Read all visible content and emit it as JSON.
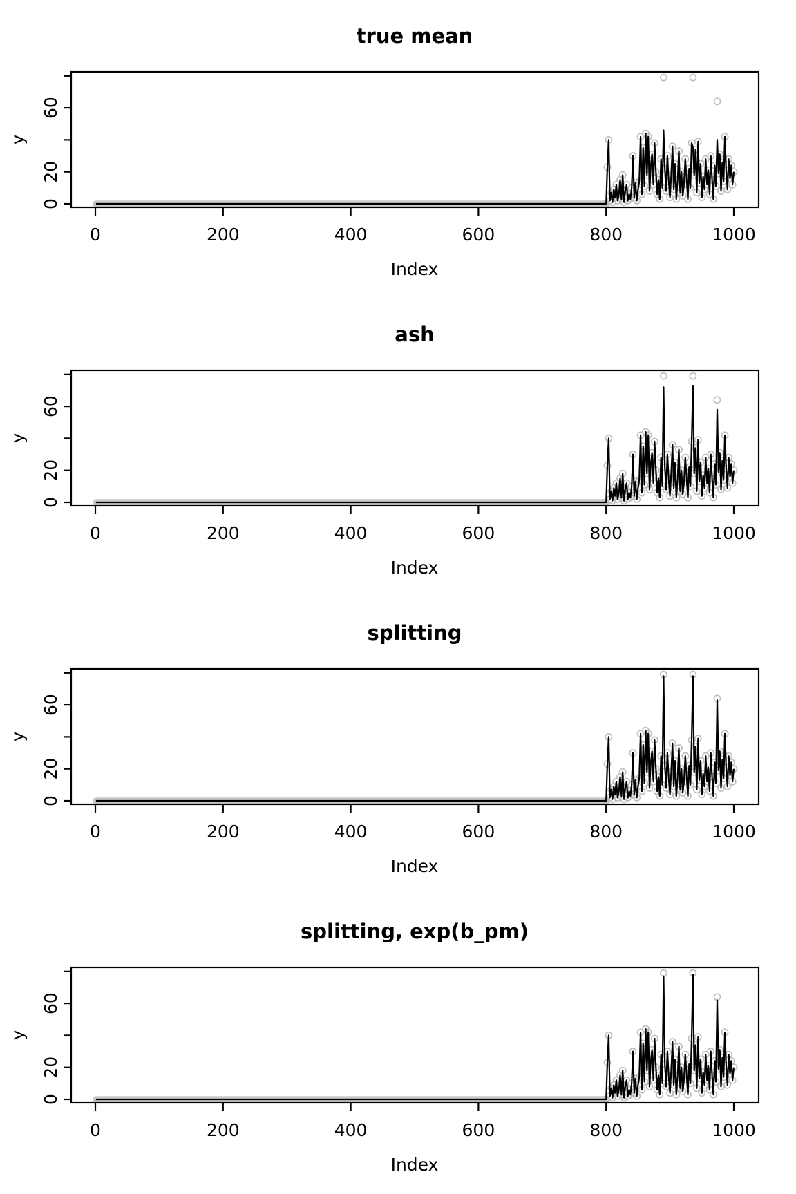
{
  "figure_title": "",
  "chart_data": {
    "type": "line",
    "xlabel": "Index",
    "ylabel": "y",
    "x_range": [
      0,
      1000
    ],
    "y_range": [
      0,
      80
    ],
    "grid": "off",
    "legend": "none",
    "x_ticks": [
      0,
      200,
      400,
      600,
      800,
      1000
    ],
    "y_ticks": [
      0,
      20,
      40,
      60,
      80
    ],
    "y_tick_labels": [
      "0",
      "20",
      "",
      "60",
      ""
    ],
    "panels": [
      {
        "title": "true mean",
        "series": "true_mean"
      },
      {
        "title": "ash",
        "series": "ash"
      },
      {
        "title": "splitting",
        "series": "splitting"
      },
      {
        "title": "splitting, exp(b_pm)",
        "series": "splitting_exp"
      }
    ],
    "flat": {
      "x_start": 1,
      "x_end": 800,
      "value": 0,
      "note": "observed y = 0 for indices 1-800 in all panels"
    },
    "x": [
      800,
      802,
      804,
      806,
      808,
      810,
      812,
      814,
      816,
      818,
      820,
      822,
      824,
      826,
      828,
      830,
      832,
      834,
      836,
      838,
      840,
      842,
      844,
      846,
      848,
      850,
      852,
      854,
      856,
      858,
      860,
      862,
      864,
      866,
      868,
      870,
      872,
      874,
      876,
      878,
      880,
      882,
      884,
      886,
      888,
      890,
      892,
      894,
      896,
      898,
      900,
      902,
      904,
      906,
      908,
      910,
      912,
      914,
      916,
      918,
      920,
      922,
      924,
      926,
      928,
      930,
      932,
      934,
      936,
      938,
      940,
      942,
      944,
      946,
      948,
      950,
      952,
      954,
      956,
      958,
      960,
      962,
      964,
      966,
      968,
      970,
      972,
      974,
      976,
      978,
      980,
      982,
      984,
      986,
      988,
      990,
      992,
      994,
      996,
      998,
      1000
    ],
    "observed": [
      0,
      23,
      40,
      2,
      7,
      1,
      9,
      4,
      12,
      2,
      6,
      15,
      3,
      18,
      1,
      8,
      12,
      2,
      6,
      3,
      10,
      30,
      4,
      13,
      2,
      9,
      14,
      42,
      6,
      35,
      11,
      44,
      18,
      42,
      8,
      24,
      31,
      12,
      38,
      20,
      6,
      15,
      3,
      28,
      10,
      79,
      22,
      8,
      30,
      14,
      4,
      18,
      36,
      9,
      25,
      3,
      15,
      33,
      7,
      20,
      5,
      12,
      28,
      16,
      3,
      22,
      10,
      38,
      79,
      18,
      34,
      7,
      39,
      13,
      25,
      4,
      17,
      9,
      28,
      12,
      21,
      6,
      30,
      15,
      3,
      24,
      11,
      64,
      19,
      31,
      8,
      26,
      14,
      42,
      21,
      9,
      28,
      16,
      24,
      12,
      20
    ],
    "lines": {
      "true_mean": [
        0,
        23,
        40,
        2,
        7,
        1,
        9,
        4,
        12,
        2,
        6,
        15,
        3,
        18,
        1,
        8,
        12,
        2,
        6,
        3,
        10,
        30,
        4,
        13,
        2,
        9,
        14,
        42,
        6,
        35,
        11,
        44,
        18,
        42,
        8,
        24,
        31,
        12,
        38,
        20,
        6,
        15,
        3,
        28,
        10,
        46,
        22,
        8,
        30,
        14,
        4,
        18,
        36,
        9,
        25,
        3,
        15,
        33,
        7,
        20,
        5,
        12,
        28,
        16,
        3,
        22,
        10,
        38,
        35,
        18,
        34,
        7,
        39,
        13,
        25,
        4,
        17,
        9,
        28,
        12,
        21,
        6,
        30,
        15,
        3,
        24,
        11,
        40,
        19,
        31,
        8,
        26,
        14,
        42,
        21,
        9,
        28,
        16,
        24,
        12,
        20
      ],
      "ash": [
        0,
        23,
        40,
        2,
        7,
        1,
        9,
        4,
        12,
        2,
        6,
        15,
        3,
        18,
        1,
        8,
        12,
        2,
        6,
        3,
        10,
        30,
        4,
        13,
        2,
        9,
        14,
        42,
        6,
        35,
        11,
        44,
        18,
        42,
        8,
        24,
        31,
        12,
        38,
        20,
        6,
        15,
        3,
        28,
        10,
        72,
        22,
        8,
        30,
        14,
        4,
        18,
        36,
        9,
        25,
        3,
        15,
        33,
        7,
        20,
        5,
        12,
        28,
        16,
        3,
        22,
        10,
        38,
        73,
        18,
        34,
        7,
        39,
        13,
        25,
        4,
        17,
        9,
        28,
        12,
        21,
        6,
        30,
        15,
        3,
        24,
        11,
        58,
        19,
        31,
        8,
        26,
        14,
        42,
        21,
        9,
        28,
        16,
        24,
        12,
        20
      ],
      "splitting": [
        0,
        23,
        40,
        2,
        7,
        1,
        9,
        4,
        12,
        2,
        6,
        15,
        3,
        18,
        1,
        8,
        12,
        2,
        6,
        3,
        10,
        30,
        4,
        13,
        2,
        9,
        14,
        42,
        6,
        35,
        11,
        44,
        18,
        42,
        8,
        24,
        31,
        12,
        38,
        20,
        6,
        15,
        3,
        28,
        10,
        78,
        22,
        8,
        30,
        14,
        4,
        18,
        36,
        9,
        25,
        3,
        15,
        33,
        7,
        20,
        5,
        12,
        28,
        16,
        3,
        22,
        10,
        38,
        78,
        18,
        34,
        7,
        39,
        13,
        25,
        4,
        17,
        9,
        28,
        12,
        21,
        6,
        30,
        15,
        3,
        24,
        11,
        63,
        19,
        31,
        8,
        26,
        14,
        42,
        21,
        9,
        28,
        16,
        24,
        12,
        20
      ],
      "splitting_exp": [
        0,
        23,
        40,
        2,
        7,
        1,
        9,
        4,
        12,
        2,
        6,
        15,
        3,
        18,
        1,
        8,
        12,
        2,
        6,
        3,
        10,
        30,
        4,
        13,
        2,
        9,
        14,
        42,
        6,
        35,
        11,
        44,
        18,
        42,
        8,
        24,
        31,
        12,
        38,
        20,
        6,
        15,
        3,
        28,
        10,
        77,
        22,
        8,
        30,
        14,
        4,
        18,
        36,
        9,
        25,
        3,
        15,
        33,
        7,
        20,
        5,
        12,
        28,
        16,
        3,
        22,
        10,
        38,
        78,
        18,
        34,
        7,
        39,
        13,
        25,
        4,
        17,
        9,
        28,
        12,
        21,
        6,
        30,
        15,
        3,
        24,
        11,
        62,
        19,
        31,
        8,
        26,
        14,
        42,
        21,
        9,
        28,
        16,
        24,
        12,
        20
      ]
    },
    "colors": {
      "line": "#000000",
      "points": "#bfbfbf",
      "points_band": "#c8c8c8",
      "axis": "#000000"
    }
  }
}
